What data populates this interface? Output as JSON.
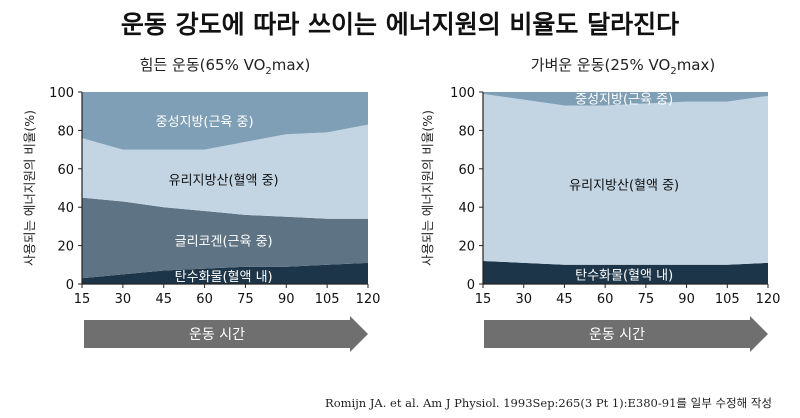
{
  "title": "운동 강도에 따라 쓰이는 에너지원의 비율도 달라진다",
  "source": "Romijn JA. et al. Am J Physiol. 1993Sep:265(3 Pt 1):E380-91를 일부 수정해 작성",
  "colors": {
    "carb": "#1c3548",
    "glycogen": "#5e7384",
    "ffa": "#c3d5e3",
    "triglyceride": "#7e9fb5",
    "arrow": "#6f6f6f"
  },
  "chart_data": [
    {
      "type": "area",
      "subtitle_parts": [
        "힘든 운동(65% VO",
        "2",
        "max)"
      ],
      "ylabel": "사용되는 에너지원의 비율(%)",
      "xlabel": "운동 시간",
      "x": [
        15,
        30,
        45,
        60,
        75,
        90,
        105,
        120
      ],
      "xlim": [
        15,
        120
      ],
      "ylim": [
        0,
        100
      ],
      "yticks": [
        0,
        20,
        40,
        60,
        80,
        100
      ],
      "series": [
        {
          "name": "탄수화물(혈액 내)",
          "values": [
            3,
            5,
            7,
            8,
            9,
            9,
            10,
            11
          ],
          "color_key": "carb"
        },
        {
          "name": "글리코겐(근육 중)",
          "values": [
            42,
            38,
            33,
            30,
            27,
            26,
            24,
            23
          ],
          "color_key": "glycogen"
        },
        {
          "name": "유리지방산(혈액 중)",
          "values": [
            31,
            27,
            30,
            32,
            38,
            43,
            45,
            49
          ],
          "color_key": "ffa"
        },
        {
          "name": "중성지방(근육 중)",
          "values": [
            24,
            30,
            30,
            30,
            26,
            22,
            21,
            17
          ],
          "color_key": "triglyceride"
        }
      ]
    },
    {
      "type": "area",
      "subtitle_parts": [
        "가벼운 운동(25% VO",
        "2",
        "max)"
      ],
      "ylabel": "사용되는 에너지원의 비율(%)",
      "xlabel": "운동 시간",
      "x": [
        15,
        30,
        45,
        60,
        75,
        90,
        105,
        120
      ],
      "xlim": [
        15,
        120
      ],
      "ylim": [
        0,
        100
      ],
      "yticks": [
        0,
        20,
        40,
        60,
        80,
        100
      ],
      "series": [
        {
          "name": "탄수화물(혈액 내)",
          "values": [
            12,
            11,
            10,
            10,
            10,
            10,
            10,
            11
          ],
          "color_key": "carb"
        },
        {
          "name": "글리코겐(근육 중)",
          "values": [
            0,
            0,
            0,
            0,
            0,
            0,
            0,
            0
          ],
          "color_key": "glycogen"
        },
        {
          "name": "유리지방산(혈액 중)",
          "values": [
            87,
            85,
            83,
            83,
            84,
            85,
            85,
            87
          ],
          "color_key": "ffa"
        },
        {
          "name": "중성지방(근육 중)",
          "values": [
            1,
            4,
            7,
            7,
            6,
            5,
            5,
            2
          ],
          "color_key": "triglyceride"
        }
      ]
    }
  ]
}
